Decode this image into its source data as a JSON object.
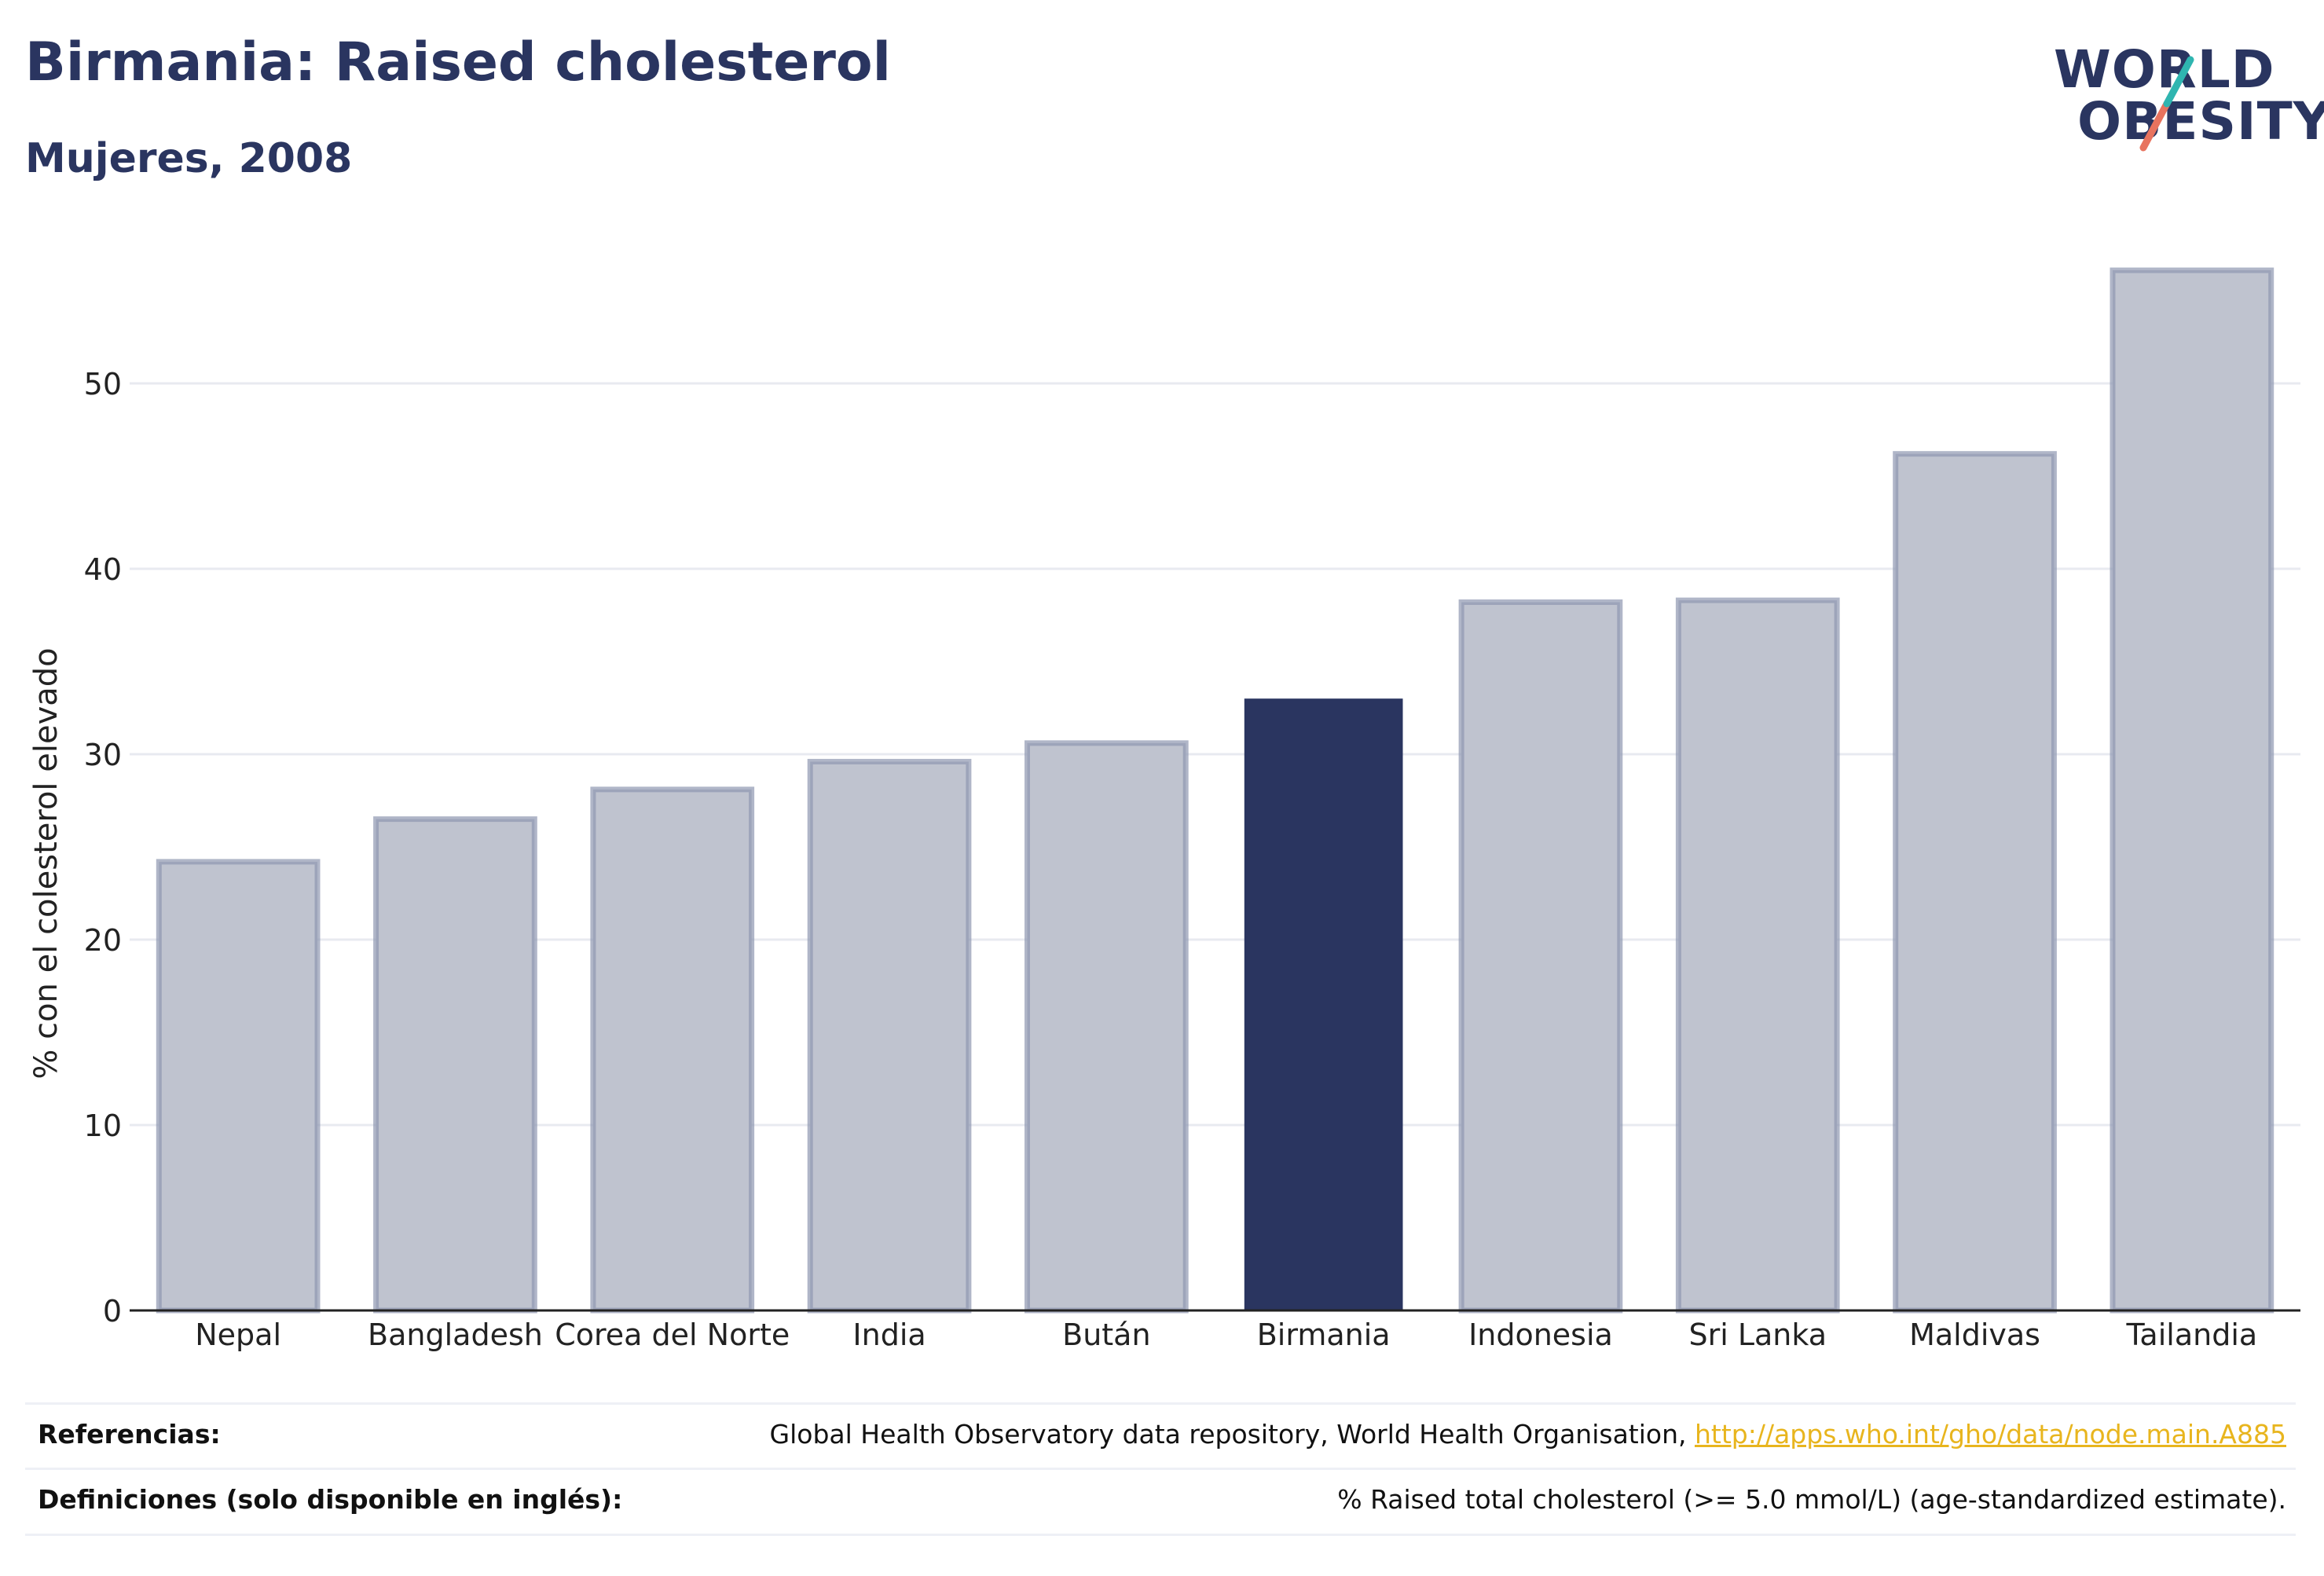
{
  "header": {
    "title": "Birmania: Raised cholesterol",
    "subtitle": "Mujeres, 2008"
  },
  "logo": {
    "line1": "WORLD",
    "line2": "OBESITY"
  },
  "chart_data": {
    "type": "bar",
    "categories": [
      "Nepal",
      "Bangladesh",
      "Corea del Norte",
      "India",
      "Bután",
      "Birmania",
      "Indonesia",
      "Sri Lanka",
      "Maldivas",
      "Tailandia"
    ],
    "values": [
      24.2,
      26.5,
      28.1,
      29.6,
      30.6,
      33.0,
      38.2,
      38.3,
      46.2,
      56.1
    ],
    "highlight": "Birmania",
    "ylabel": "% con el colesterol elevado",
    "xlabel": "",
    "ylim": [
      0,
      60
    ],
    "yticks": [
      0,
      10,
      20,
      30,
      40,
      50
    ],
    "grid": true,
    "colors": {
      "bar": "#bfc3cf",
      "bar_stroke": "#8f97b0",
      "highlight": "#2a3560",
      "grid": "#e8eaf0",
      "axis": "#222222"
    }
  },
  "footer": {
    "references_label": "Referencias:",
    "references_text": "Global Health Observatory data repository, World Health Organisation, ",
    "references_link": "http://apps.who.int/gho/data/node.main.A885",
    "definitions_label": "Definiciones (solo disponible en inglés):",
    "definitions_text": "% Raised total cholesterol (>= 5.0 mmol/L) (age-standardized estimate)."
  }
}
